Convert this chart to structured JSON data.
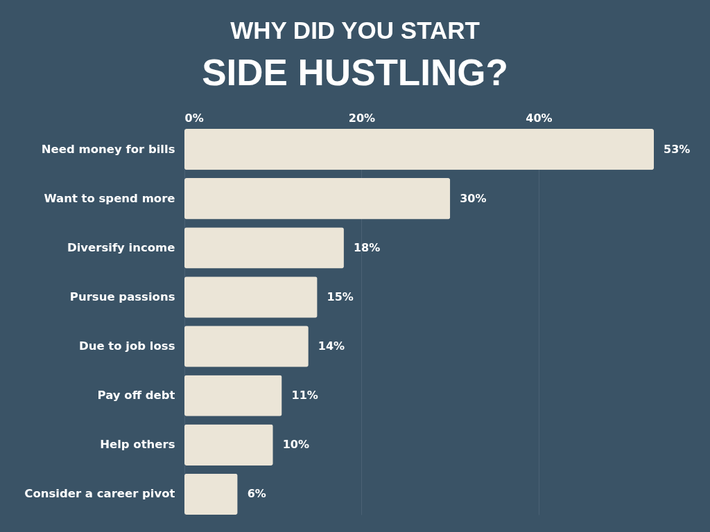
{
  "chart_data": {
    "type": "bar",
    "orientation": "horizontal",
    "title": "WHY DID YOU START",
    "subtitle": "SIDE HUSTLING?",
    "categories": [
      "Need money for bills",
      "Want to spend more",
      "Diversify income",
      "Pursue passions",
      "Due to job loss",
      "Pay off debt",
      "Help others",
      "Consider a career pivot"
    ],
    "values": [
      53,
      30,
      18,
      15,
      14,
      11,
      10,
      6
    ],
    "value_labels": [
      "53%",
      "30%",
      "18%",
      "15%",
      "14%",
      "11%",
      "10%",
      "6%"
    ],
    "color": "#ebe5d7",
    "xlim": [
      0,
      53
    ],
    "xticks": [
      {
        "value": 0,
        "label": "0%"
      },
      {
        "value": 20,
        "label": "20%"
      },
      {
        "value": 40,
        "label": "40%"
      }
    ],
    "grid": "x"
  }
}
